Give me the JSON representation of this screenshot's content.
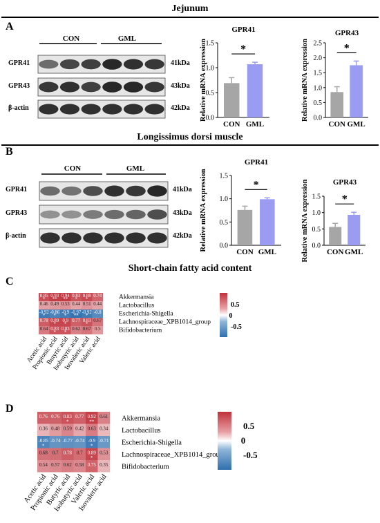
{
  "sections": {
    "jejunum": "Jejunum",
    "muscle": "Longissimus dorsi muscle",
    "scfa": "Short-chain fatty acid content"
  },
  "panels": {
    "A": "A",
    "B": "B",
    "C": "C",
    "D": "D"
  },
  "blots": {
    "group_labels": [
      "CON",
      "GML"
    ],
    "rows": [
      "GPR41",
      "GPR43",
      "β-actin"
    ],
    "sizes": [
      "41kDa",
      "43kDa",
      "42kDa"
    ],
    "A_intensity": [
      [
        0.55,
        0.8,
        0.85,
        1.0,
        0.95,
        0.9
      ],
      [
        0.9,
        0.95,
        0.85,
        1.0,
        1.0,
        0.9
      ],
      [
        0.95,
        0.95,
        0.95,
        0.95,
        0.95,
        0.95
      ]
    ],
    "B_intensity": [
      [
        0.55,
        0.5,
        0.75,
        0.95,
        0.9,
        1.0
      ],
      [
        0.3,
        0.3,
        0.45,
        0.55,
        0.6,
        0.75
      ],
      [
        0.95,
        0.95,
        0.95,
        0.95,
        0.95,
        0.95
      ]
    ]
  },
  "chart_data": [
    {
      "type": "bar",
      "panel": "A",
      "title": "GPR41",
      "categories": [
        "CON",
        "GML"
      ],
      "values": [
        0.69,
        1.07
      ],
      "errors": [
        0.11,
        0.04
      ],
      "ylabel": "Relative mRNA expression",
      "ylim": [
        0,
        1.5
      ],
      "yticks": [
        "0.0",
        "0.5",
        "1.0",
        "1.5"
      ],
      "significance": "*",
      "colors": [
        "#a6a6a6",
        "#9a9cf2"
      ]
    },
    {
      "type": "bar",
      "panel": "A",
      "title": "GPR43",
      "categories": [
        "CON",
        "GML"
      ],
      "values": [
        0.85,
        1.75
      ],
      "errors": [
        0.18,
        0.14
      ],
      "ylabel": "Relative mRNA expression",
      "ylim": [
        0,
        2.5
      ],
      "yticks": [
        "0.0",
        "0.5",
        "1.0",
        "1.5",
        "2.0",
        "2.5"
      ],
      "significance": "*",
      "colors": [
        "#a6a6a6",
        "#9a9cf2"
      ]
    },
    {
      "type": "bar",
      "panel": "B",
      "title": "GPR41",
      "categories": [
        "CON",
        "GML"
      ],
      "values": [
        0.76,
        0.99
      ],
      "errors": [
        0.08,
        0.03
      ],
      "ylabel": "Relative mRNA expression",
      "ylim": [
        0,
        1.5
      ],
      "yticks": [
        "0.0",
        "0.5",
        "1.0",
        "1.5"
      ],
      "significance": "*",
      "colors": [
        "#a6a6a6",
        "#9a9cf2"
      ]
    },
    {
      "type": "bar",
      "panel": "B",
      "title": "GPR43",
      "categories": [
        "CON",
        "GML"
      ],
      "values": [
        0.56,
        0.93
      ],
      "errors": [
        0.11,
        0.08
      ],
      "ylabel": "Relative mRNA expression",
      "ylim": [
        0,
        1.5
      ],
      "yticks": [
        "0.0",
        "0.5",
        "1.0",
        "1.5"
      ],
      "significance": "*",
      "colors": [
        "#a6a6a6",
        "#9a9cf2"
      ]
    },
    {
      "type": "heatmap",
      "panel": "C",
      "rows": [
        "Akkermansia",
        "Lactobacillus",
        "Escherichia-Shigella",
        "Lachnospiraceae_XPB1014_group",
        "Bifidobacterium"
      ],
      "columns": [
        "Acetic acid",
        "Propionic acid",
        "Butyric acid",
        "Isobutyric acid",
        "Isovaleric acid",
        "Valeric acid"
      ],
      "values": [
        [
          0.85,
          0.93,
          0.94,
          0.83,
          0.88,
          0.74
        ],
        [
          0.46,
          0.49,
          0.53,
          0.44,
          0.51,
          0.44
        ],
        [
          -0.92,
          -0.86,
          -0.9,
          -0.97,
          -0.92,
          -0.8
        ],
        [
          0.78,
          0.89,
          0.9,
          0.77,
          0.83,
          0.67
        ],
        [
          0.64,
          0.83,
          0.83,
          0.62,
          0.67,
          0.5
        ]
      ],
      "stars": [
        [
          "*",
          "**",
          "**",
          "*",
          "*",
          ""
        ],
        [
          "",
          "",
          "",
          "",
          "",
          ""
        ],
        [
          "*",
          "*",
          "*",
          "**",
          "*",
          ""
        ],
        [
          "",
          "*",
          "*",
          "",
          "*",
          ""
        ],
        [
          "",
          "*",
          "*",
          "",
          "",
          ""
        ]
      ],
      "scale_ticks": [
        "0.5",
        "0",
        "-0.5"
      ],
      "scale_range": [
        -1,
        1
      ]
    },
    {
      "type": "heatmap",
      "panel": "D",
      "rows": [
        "Akkermansia",
        "Lactobacillus",
        "Escherichia-Shigella",
        "Lachnospiraceae_XPB1014_group",
        "Bifidobacterium"
      ],
      "columns": [
        "Acetic acid",
        "Propionic acid",
        "Butyric acid",
        "Isobutyric acid",
        "Valeric acid",
        "Isovaleric acid"
      ],
      "values": [
        [
          0.76,
          0.76,
          0.83,
          0.77,
          0.92,
          0.61
        ],
        [
          0.36,
          0.48,
          0.59,
          0.42,
          0.63,
          0.34
        ],
        [
          -0.85,
          -0.74,
          -0.77,
          -0.74,
          -0.9,
          -0.71
        ],
        [
          0.68,
          0.7,
          0.78,
          0.7,
          0.89,
          0.53
        ],
        [
          0.54,
          0.57,
          0.62,
          0.58,
          0.75,
          0.35
        ]
      ],
      "stars": [
        [
          "",
          "",
          "*",
          "",
          "**",
          ""
        ],
        [
          "",
          "",
          "",
          "",
          "",
          ""
        ],
        [
          "*",
          "",
          "",
          "",
          "*",
          ""
        ],
        [
          "",
          "",
          "",
          "",
          "*",
          ""
        ],
        [
          "",
          "",
          "",
          "",
          "",
          ""
        ]
      ],
      "scale_ticks": [
        "0.5",
        "0",
        "-0.5"
      ],
      "scale_range": [
        -1,
        1
      ]
    }
  ]
}
